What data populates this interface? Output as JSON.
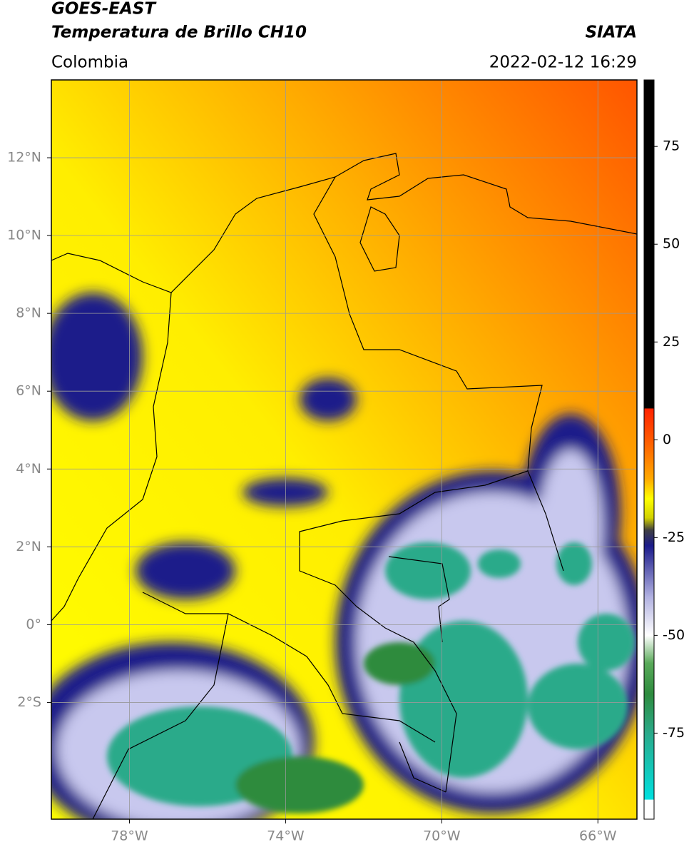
{
  "header": {
    "title1": "GOES-EAST",
    "title2": "Temperatura de Brillo CH10",
    "region": "Colombia",
    "source": "SIATA",
    "datetime": "2022-02-12 16:29"
  },
  "map": {
    "xlim": [
      -80,
      -65
    ],
    "ylim": [
      -5,
      14
    ],
    "xticks": [
      {
        "value": -78,
        "label": "78°W"
      },
      {
        "value": -74,
        "label": "74°W"
      },
      {
        "value": -70,
        "label": "70°W"
      },
      {
        "value": -66,
        "label": "66°W"
      }
    ],
    "yticks": [
      {
        "value": -2,
        "label": "2°S"
      },
      {
        "value": 0,
        "label": "0°"
      },
      {
        "value": 2,
        "label": "2°N"
      },
      {
        "value": 4,
        "label": "4°N"
      },
      {
        "value": 6,
        "label": "6°N"
      },
      {
        "value": 8,
        "label": "8°N"
      },
      {
        "value": 10,
        "label": "10°N"
      },
      {
        "value": 12,
        "label": "12°N"
      }
    ],
    "grid": true
  },
  "colorbar": {
    "lim": [
      -97,
      92
    ],
    "ticks": [
      -75,
      -50,
      -25,
      0,
      25,
      50,
      75
    ],
    "colormap": [
      {
        "value": 92,
        "color": "#000000"
      },
      {
        "value": 8,
        "color": "#000000"
      },
      {
        "value": 8,
        "color": "#ff2200"
      },
      {
        "value": 0,
        "color": "#ff5a00"
      },
      {
        "value": -10,
        "color": "#ffaa00"
      },
      {
        "value": -15,
        "color": "#ffff00"
      },
      {
        "value": -20,
        "color": "#d0d000"
      },
      {
        "value": -23,
        "color": "#404040"
      },
      {
        "value": -27,
        "color": "#1a1a8a"
      },
      {
        "value": -40,
        "color": "#b0b0e0"
      },
      {
        "value": -50,
        "color": "#ffffff"
      },
      {
        "value": -57,
        "color": "#5aaa5a"
      },
      {
        "value": -65,
        "color": "#2e8b3e"
      },
      {
        "value": -75,
        "color": "#2aaa8a"
      },
      {
        "value": -92,
        "color": "#00e0e0"
      },
      {
        "value": -92,
        "color": "#ffffff"
      },
      {
        "value": -97,
        "color": "#ffffff"
      }
    ]
  }
}
